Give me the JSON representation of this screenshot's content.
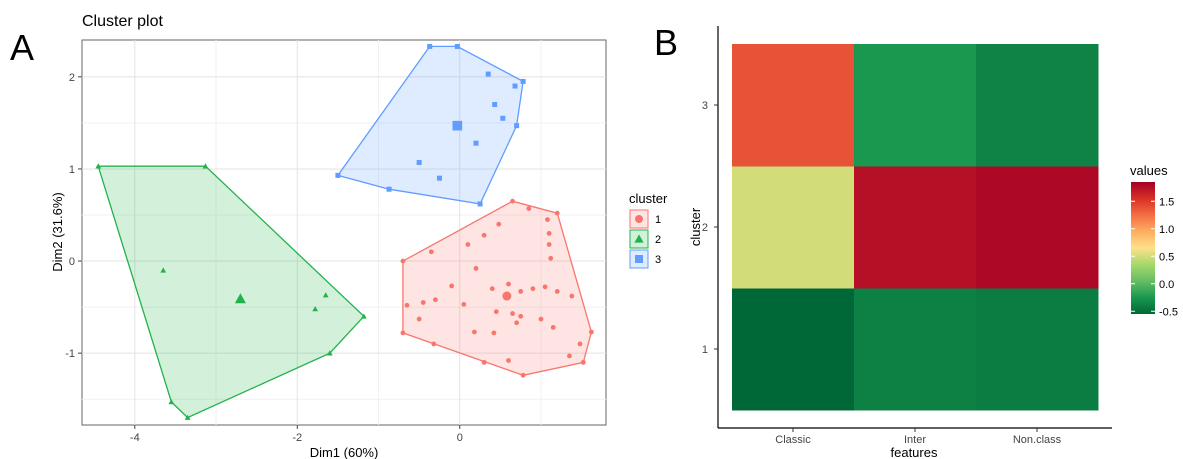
{
  "panel_a_label": "A",
  "panel_b_label": "B",
  "colors": {
    "c1": "#f8766d",
    "c2": "#22b24c",
    "c3": "#619cff"
  },
  "chart_data": [
    {
      "type": "scatter",
      "title": "Cluster plot",
      "xlabel": "Dim1 (60%)",
      "ylabel": "Dim2 (31.6%)",
      "xlim": [
        -4.65,
        1.8
      ],
      "ylim": [
        -1.78,
        2.4
      ],
      "xticks": [
        -4,
        -2,
        0
      ],
      "yticks": [
        -1,
        0,
        1,
        2
      ],
      "grid": true,
      "legend_title": "cluster",
      "legend_position": "right",
      "series": [
        {
          "name": "1",
          "marker": "circle",
          "color": "#f8766d",
          "center": [
            0.58,
            -0.38
          ],
          "hull": [
            [
              -0.7,
              0.0
            ],
            [
              0.65,
              0.65
            ],
            [
              1.2,
              0.52
            ],
            [
              1.62,
              -0.77
            ],
            [
              1.52,
              -1.1
            ],
            [
              0.78,
              -1.24
            ],
            [
              -0.7,
              -0.78
            ]
          ],
          "points": [
            [
              -0.35,
              0.1
            ],
            [
              0.1,
              0.18
            ],
            [
              0.3,
              0.28
            ],
            [
              0.48,
              0.4
            ],
            [
              0.85,
              0.57
            ],
            [
              1.08,
              0.45
            ],
            [
              1.1,
              0.3
            ],
            [
              1.1,
              0.18
            ],
            [
              1.12,
              0.03
            ],
            [
              0.2,
              -0.08
            ],
            [
              -0.1,
              -0.27
            ],
            [
              0.4,
              -0.3
            ],
            [
              0.6,
              -0.25
            ],
            [
              0.75,
              -0.33
            ],
            [
              0.9,
              -0.3
            ],
            [
              1.05,
              -0.28
            ],
            [
              1.2,
              -0.33
            ],
            [
              1.38,
              -0.38
            ],
            [
              -0.65,
              -0.48
            ],
            [
              -0.45,
              -0.45
            ],
            [
              -0.3,
              -0.42
            ],
            [
              0.05,
              -0.47
            ],
            [
              0.45,
              -0.55
            ],
            [
              0.65,
              -0.57
            ],
            [
              0.75,
              -0.6
            ],
            [
              1.0,
              -0.63
            ],
            [
              0.7,
              -0.67
            ],
            [
              0.18,
              -0.77
            ],
            [
              0.42,
              -0.78
            ],
            [
              -0.32,
              -0.9
            ],
            [
              0.3,
              -1.1
            ],
            [
              0.6,
              -1.08
            ],
            [
              1.35,
              -1.03
            ],
            [
              1.48,
              -0.9
            ],
            [
              -0.5,
              -0.63
            ],
            [
              1.15,
              -0.72
            ]
          ]
        },
        {
          "name": "2",
          "marker": "triangle",
          "color": "#22b24c",
          "center": [
            -2.7,
            -0.41
          ],
          "hull": [
            [
              -4.45,
              1.03
            ],
            [
              -3.13,
              1.03
            ],
            [
              -1.18,
              -0.6
            ],
            [
              -1.6,
              -1.0
            ],
            [
              -3.35,
              -1.7
            ],
            [
              -3.55,
              -1.53
            ]
          ],
          "points": [
            [
              -3.65,
              -0.1
            ],
            [
              -1.65,
              -0.37
            ],
            [
              -1.78,
              -0.52
            ]
          ]
        },
        {
          "name": "3",
          "marker": "square",
          "color": "#619cff",
          "center": [
            -0.03,
            1.47
          ],
          "hull": [
            [
              -0.37,
              2.33
            ],
            [
              -0.03,
              2.33
            ],
            [
              0.78,
              1.95
            ],
            [
              0.7,
              1.47
            ],
            [
              0.25,
              0.62
            ],
            [
              -0.87,
              0.78
            ],
            [
              -1.5,
              0.93
            ]
          ],
          "points": [
            [
              0.35,
              2.03
            ],
            [
              0.68,
              1.9
            ],
            [
              0.43,
              1.7
            ],
            [
              0.53,
              1.55
            ],
            [
              0.2,
              1.28
            ],
            [
              -0.5,
              1.07
            ],
            [
              -0.25,
              0.9
            ]
          ]
        }
      ]
    },
    {
      "type": "heatmap",
      "xlabel": "features",
      "ylabel": "cluster",
      "x_categories": [
        "Classic",
        "Inter",
        "Non.class"
      ],
      "y_categories": [
        "1",
        "2",
        "3"
      ],
      "values": [
        [
          -0.55,
          -0.4,
          -0.42
        ],
        [
          0.5,
          1.75,
          1.8
        ],
        [
          1.38,
          -0.25,
          -0.38
        ]
      ],
      "color_scale": {
        "min": -0.55,
        "max": 1.85,
        "stops": [
          "#006837",
          "#1a9850",
          "#66bd63",
          "#a6d96a",
          "#fee08b",
          "#fdae61",
          "#f46d43",
          "#d73027",
          "#a50026"
        ]
      },
      "legend_title": "values",
      "legend_ticks": [
        "1.5",
        "1.0",
        "0.5",
        "0.0",
        "-0.5"
      ],
      "legend_position": "right"
    }
  ]
}
